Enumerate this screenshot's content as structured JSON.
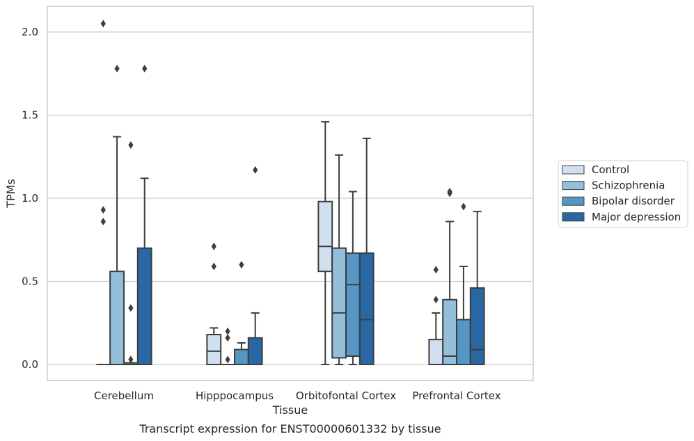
{
  "chart_data": {
    "type": "box",
    "xlabel": "Tissue",
    "ylabel": "TPMs",
    "caption": "Transcript expression for ENST00000601332 by tissue",
    "ylim": [
      -0.1,
      2.15
    ],
    "yticks": [
      "0.0",
      "0.5",
      "1.0",
      "1.5",
      "2.0"
    ],
    "ytick_values": [
      0.0,
      0.5,
      1.0,
      1.5,
      2.0
    ],
    "grid": "horizontal",
    "legend_position": "right",
    "categories": [
      "Cerebellum",
      "Hipppocampus",
      "Orbitofontal Cortex",
      "Prefrontal Cortex"
    ],
    "series": [
      {
        "name": "Control",
        "color": "#d1e0f0",
        "boxes": [
          {
            "q1": 0.0,
            "median": 0.0,
            "q3": 0.0,
            "whisker_low": 0.0,
            "whisker_high": 0.0,
            "outliers": [
              2.05,
              0.93,
              0.86
            ]
          },
          {
            "q1": 0.0,
            "median": 0.08,
            "q3": 0.18,
            "whisker_low": 0.0,
            "whisker_high": 0.22,
            "outliers": [
              0.71,
              0.59
            ]
          },
          {
            "q1": 0.56,
            "median": 0.71,
            "q3": 0.98,
            "whisker_low": 0.0,
            "whisker_high": 1.46,
            "outliers": []
          },
          {
            "q1": 0.0,
            "median": 0.0,
            "q3": 0.15,
            "whisker_low": 0.0,
            "whisker_high": 0.31,
            "outliers": [
              0.57,
              0.39
            ]
          }
        ]
      },
      {
        "name": "Schizophrenia",
        "color": "#94bfdb",
        "boxes": [
          {
            "q1": 0.0,
            "median": 0.0,
            "q3": 0.56,
            "whisker_low": 0.0,
            "whisker_high": 1.37,
            "outliers": [
              1.78
            ]
          },
          {
            "q1": 0.0,
            "median": 0.0,
            "q3": 0.0,
            "whisker_low": 0.0,
            "whisker_high": 0.0,
            "outliers": [
              0.2,
              0.16,
              0.03
            ]
          },
          {
            "q1": 0.04,
            "median": 0.31,
            "q3": 0.7,
            "whisker_low": 0.0,
            "whisker_high": 1.26,
            "outliers": []
          },
          {
            "q1": 0.0,
            "median": 0.05,
            "q3": 0.39,
            "whisker_low": 0.0,
            "whisker_high": 0.86,
            "outliers": [
              1.04,
              1.03
            ]
          }
        ]
      },
      {
        "name": "Bipolar disorder",
        "color": "#5596c4",
        "boxes": [
          {
            "q1": 0.0,
            "median": 0.0,
            "q3": 0.01,
            "whisker_low": 0.0,
            "whisker_high": 0.01,
            "outliers": [
              1.32,
              0.34,
              0.03
            ]
          },
          {
            "q1": 0.0,
            "median": 0.0,
            "q3": 0.09,
            "whisker_low": 0.0,
            "whisker_high": 0.13,
            "outliers": [
              0.6
            ]
          },
          {
            "q1": 0.05,
            "median": 0.48,
            "q3": 0.67,
            "whisker_low": 0.0,
            "whisker_high": 1.04,
            "outliers": []
          },
          {
            "q1": 0.0,
            "median": 0.0,
            "q3": 0.27,
            "whisker_low": 0.0,
            "whisker_high": 0.59,
            "outliers": [
              0.95
            ]
          }
        ]
      },
      {
        "name": "Major depression",
        "color": "#2a67a5",
        "boxes": [
          {
            "q1": 0.0,
            "median": 0.0,
            "q3": 0.7,
            "whisker_low": 0.0,
            "whisker_high": 1.12,
            "outliers": [
              1.78
            ]
          },
          {
            "q1": 0.0,
            "median": 0.0,
            "q3": 0.16,
            "whisker_low": 0.0,
            "whisker_high": 0.31,
            "outliers": [
              1.17
            ]
          },
          {
            "q1": 0.0,
            "median": 0.27,
            "q3": 0.67,
            "whisker_low": 0.0,
            "whisker_high": 1.36,
            "outliers": []
          },
          {
            "q1": 0.0,
            "median": 0.09,
            "q3": 0.46,
            "whisker_low": 0.0,
            "whisker_high": 0.92,
            "outliers": []
          }
        ]
      }
    ]
  }
}
